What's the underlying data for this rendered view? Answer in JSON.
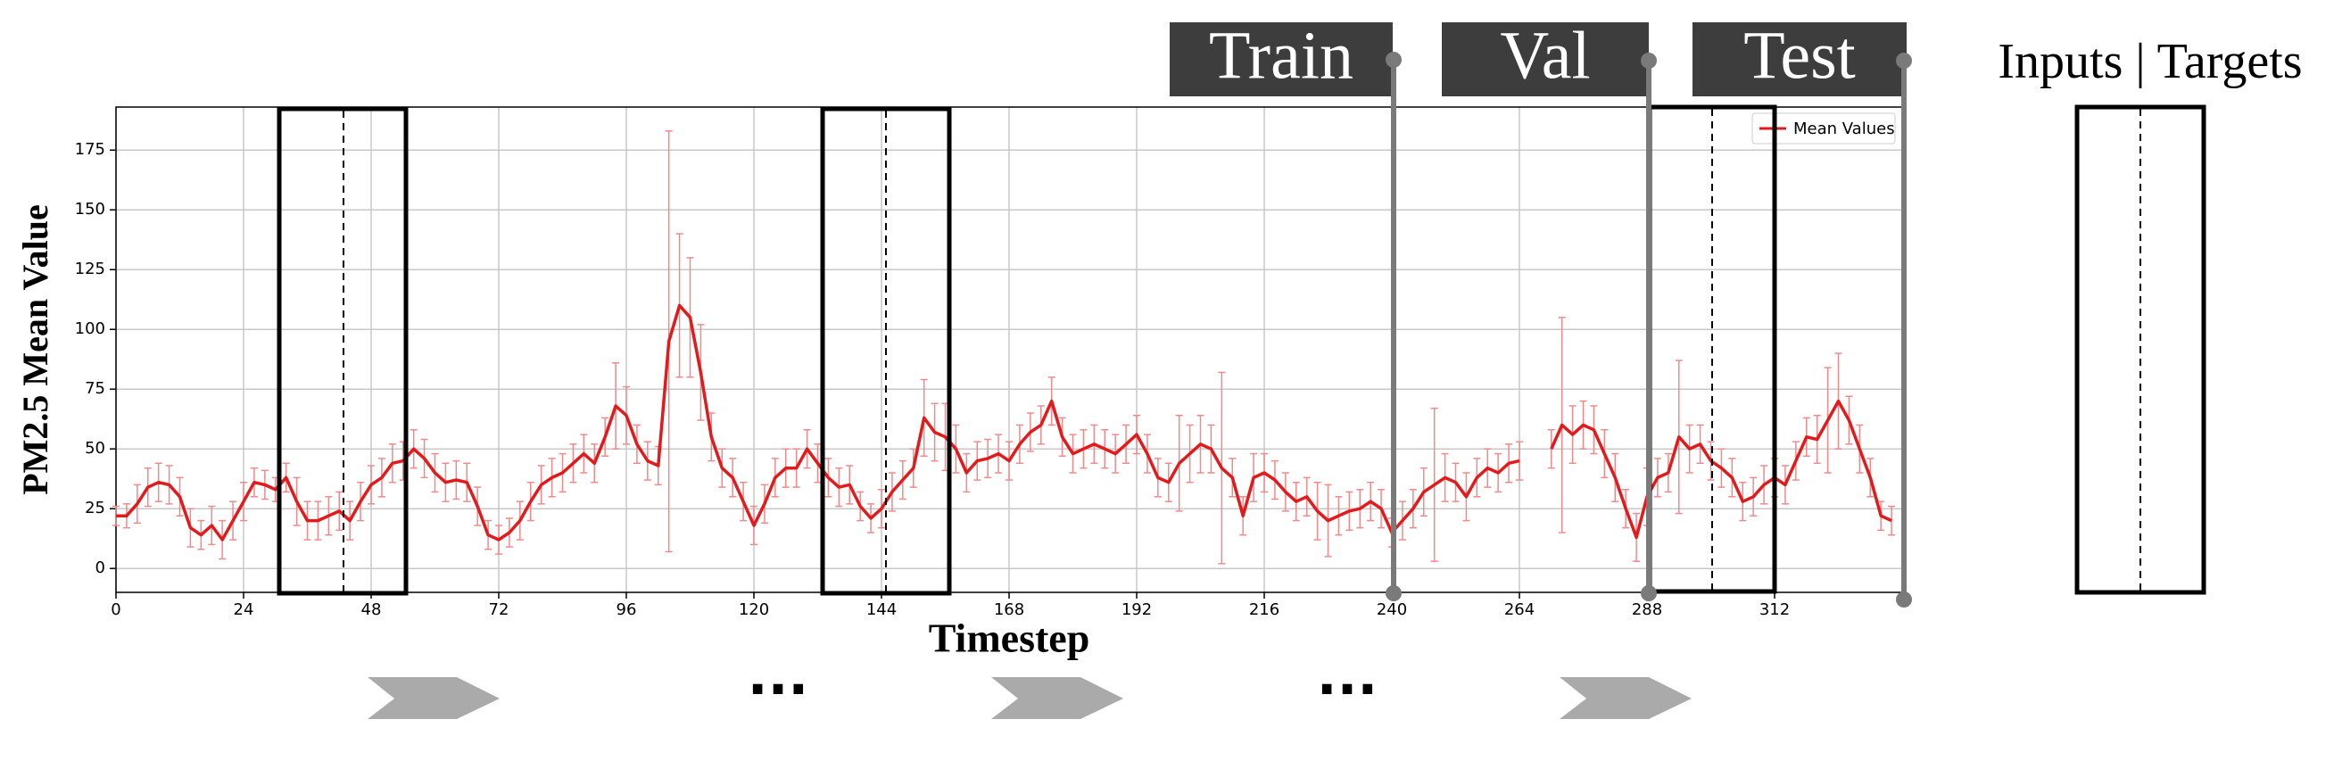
{
  "chart_data": {
    "type": "line",
    "x_label": "Timestep",
    "y_label": "PM2.5 Mean Value",
    "annotations": [
      "Train",
      "Val",
      "Test",
      "Inputs | Targets",
      "...",
      "..."
    ],
    "x": [
      0,
      2,
      4,
      6,
      8,
      10,
      12,
      14,
      16,
      18,
      20,
      22,
      24,
      26,
      28,
      30,
      32,
      34,
      36,
      38,
      40,
      42,
      44,
      46,
      48,
      50,
      52,
      54,
      56,
      58,
      60,
      62,
      64,
      66,
      68,
      70,
      72,
      74,
      76,
      78,
      80,
      82,
      84,
      86,
      88,
      90,
      92,
      94,
      96,
      98,
      100,
      102,
      104,
      106,
      108,
      110,
      112,
      114,
      116,
      118,
      120,
      122,
      124,
      126,
      128,
      130,
      132,
      134,
      136,
      138,
      140,
      142,
      144,
      146,
      148,
      150,
      152,
      154,
      156,
      158,
      160,
      162,
      164,
      166,
      168,
      170,
      172,
      174,
      176,
      178,
      180,
      182,
      184,
      186,
      188,
      190,
      192,
      194,
      196,
      198,
      200,
      202,
      204,
      206,
      208,
      210,
      212,
      214,
      216,
      218,
      220,
      222,
      224,
      226,
      228,
      230,
      232,
      234,
      236,
      238,
      240,
      242,
      244,
      246,
      248,
      250,
      252,
      254,
      256,
      258,
      260,
      262,
      264,
      266,
      268,
      270,
      272,
      274,
      276,
      278,
      280,
      282,
      284,
      286,
      288,
      290,
      292,
      294,
      296,
      298,
      300,
      302,
      304,
      306,
      308,
      310,
      312,
      314,
      316,
      318,
      320,
      322,
      324,
      326,
      328,
      330,
      332,
      334
    ],
    "series": [
      {
        "name": "Mean Values",
        "color": "#e31a1c",
        "error_color": "#f08a8a",
        "values": [
          22,
          22,
          27,
          34,
          36,
          35,
          30,
          17,
          14,
          18,
          12,
          20,
          28,
          36,
          35,
          33,
          38,
          28,
          20,
          20,
          22,
          24,
          20,
          28,
          35,
          38,
          44,
          45,
          50,
          46,
          40,
          36,
          37,
          36,
          26,
          14,
          12,
          15,
          20,
          28,
          35,
          38,
          40,
          44,
          48,
          44,
          55,
          68,
          64,
          52,
          45,
          43,
          95,
          110,
          105,
          82,
          55,
          42,
          38,
          28,
          18,
          27,
          38,
          42,
          42,
          50,
          44,
          38,
          34,
          35,
          26,
          21,
          25,
          32,
          37,
          42,
          63,
          57,
          55,
          50,
          40,
          45,
          46,
          48,
          45,
          52,
          57,
          60,
          70,
          55,
          48,
          50,
          52,
          50,
          48,
          52,
          56,
          48,
          38,
          36,
          44,
          48,
          52,
          50,
          42,
          38,
          22,
          38,
          40,
          37,
          32,
          28,
          30,
          24,
          20,
          22,
          24,
          25,
          28,
          25,
          15,
          20,
          25,
          32,
          35,
          38,
          36,
          30,
          38,
          42,
          40,
          44,
          45,
          null,
          null,
          50,
          60,
          56,
          60,
          58,
          48,
          38,
          25,
          13,
          30,
          38,
          40,
          55,
          50,
          52,
          45,
          42,
          38,
          28,
          30,
          35,
          38,
          35,
          45,
          55,
          54,
          62,
          70,
          62,
          50,
          38,
          22,
          20
        ],
        "errors": [
          4,
          5,
          8,
          8,
          8,
          8,
          8,
          8,
          6,
          8,
          8,
          8,
          8,
          6,
          6,
          5,
          6,
          10,
          8,
          8,
          8,
          8,
          8,
          8,
          8,
          8,
          8,
          8,
          8,
          8,
          8,
          8,
          8,
          8,
          8,
          6,
          6,
          6,
          8,
          8,
          8,
          8,
          8,
          8,
          8,
          8,
          8,
          18,
          12,
          8,
          8,
          8,
          88,
          30,
          25,
          20,
          10,
          8,
          8,
          8,
          8,
          8,
          8,
          8,
          8,
          8,
          8,
          8,
          8,
          8,
          6,
          6,
          8,
          8,
          8,
          8,
          16,
          12,
          14,
          10,
          8,
          8,
          8,
          8,
          8,
          8,
          8,
          8,
          10,
          8,
          8,
          8,
          8,
          8,
          8,
          8,
          8,
          8,
          8,
          8,
          20,
          12,
          12,
          10,
          40,
          8,
          8,
          10,
          8,
          8,
          8,
          8,
          8,
          12,
          15,
          8,
          8,
          8,
          8,
          8,
          6,
          8,
          8,
          10,
          32,
          10,
          8,
          10,
          8,
          8,
          8,
          8,
          8,
          8,
          8,
          8,
          45,
          12,
          10,
          10,
          10,
          10,
          8,
          10,
          12,
          8,
          8,
          32,
          10,
          8,
          8,
          8,
          8,
          8,
          8,
          8,
          8,
          8,
          8,
          8,
          10,
          22,
          20,
          10,
          10,
          8,
          6,
          6
        ]
      }
    ],
    "xlim": [
      0,
      336
    ],
    "ylim": [
      -10,
      193
    ],
    "xticks": [
      0,
      24,
      48,
      72,
      96,
      120,
      144,
      168,
      192,
      216,
      240,
      264,
      288,
      312
    ],
    "yticks": [
      0,
      25,
      50,
      75,
      100,
      125,
      150,
      175
    ],
    "grid": true,
    "legend": "upper right"
  }
}
